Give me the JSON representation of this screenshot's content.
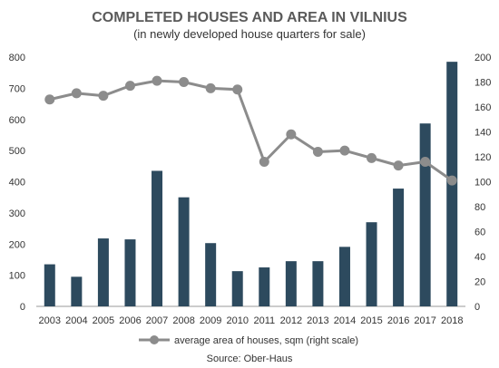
{
  "chart_data": {
    "type": "bar",
    "title": "COMPLETED HOUSES AND AREA IN VILNIUS",
    "subtitle": "(in newly developed house quarters for sale)",
    "categories": [
      "2003",
      "2004",
      "2005",
      "2006",
      "2007",
      "2008",
      "2009",
      "2010",
      "2011",
      "2012",
      "2013",
      "2014",
      "2015",
      "2016",
      "2017",
      "2018"
    ],
    "series": [
      {
        "type": "bar",
        "axis": "left",
        "values": [
          135,
          95,
          218,
          215,
          435,
          350,
          203,
          113,
          125,
          145,
          145,
          191,
          270,
          378,
          587,
          785
        ]
      },
      {
        "type": "line",
        "axis": "right",
        "name": "average area of houses, sqm (right scale)",
        "values": [
          166,
          171,
          169,
          177,
          181,
          180,
          175,
          174,
          116,
          138,
          124,
          125,
          119,
          113,
          116,
          101
        ]
      }
    ],
    "left_axis": {
      "min": 0,
      "max": 800,
      "ticks": [
        0,
        100,
        200,
        300,
        400,
        500,
        600,
        700,
        800
      ]
    },
    "right_axis": {
      "min": 0,
      "max": 200,
      "ticks": [
        0,
        20,
        40,
        60,
        80,
        100,
        120,
        140,
        160,
        180,
        200
      ]
    },
    "grid": false,
    "legend_position": "bottom",
    "source": "Source: Ober-Haus",
    "colors": {
      "bar": "#2d4a5e",
      "line": "#8c8c8c",
      "title": "#5a5a5a",
      "text": "#333333"
    }
  }
}
